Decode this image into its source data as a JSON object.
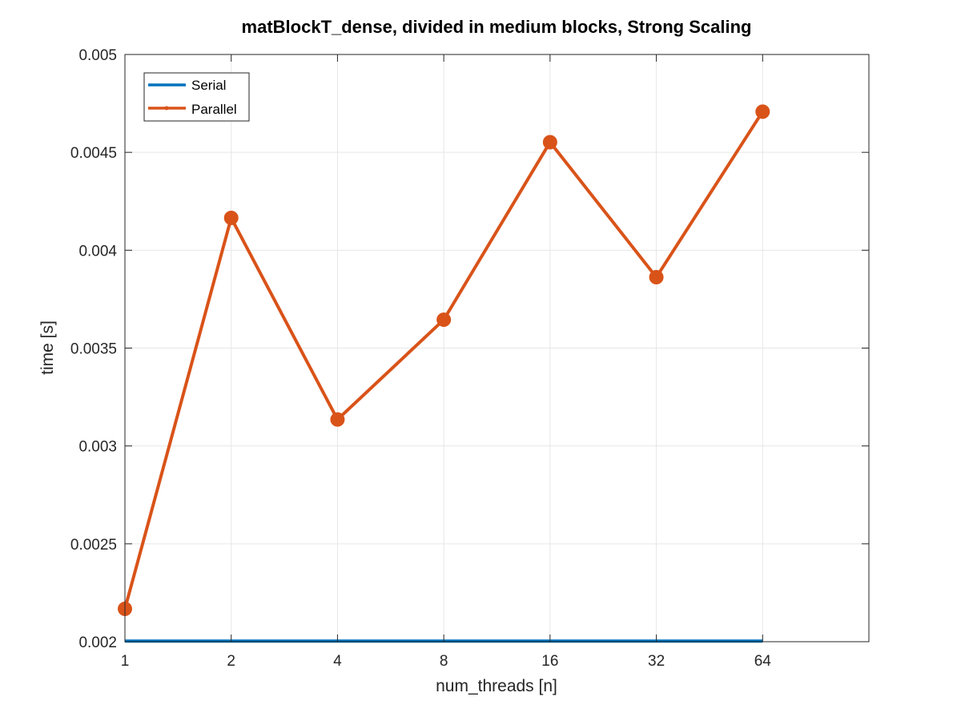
{
  "chart_data": {
    "type": "line",
    "title": "matBlockT_dense, divided in medium blocks, Strong Scaling",
    "xlabel": "num_threads [n]",
    "ylabel": "time [s]",
    "x_scale": "log2",
    "x_categories": [
      "1",
      "2",
      "4",
      "8",
      "16",
      "32",
      "64"
    ],
    "x": [
      1,
      2,
      4,
      8,
      16,
      32,
      64
    ],
    "xlim": [
      1,
      128
    ],
    "ylim": [
      0.002,
      0.005
    ],
    "yticks": [
      "0.002",
      "0.0025",
      "0.003",
      "0.0035",
      "0.004",
      "0.0045",
      "0.005"
    ],
    "grid": true,
    "legend_position": "top-left",
    "series": [
      {
        "name": "Serial",
        "color": "#0072BD",
        "marker": "none",
        "values": [
          0.002003,
          0.002003,
          0.002003,
          0.002003,
          0.002003,
          0.002003,
          0.002003
        ]
      },
      {
        "name": "Parallel",
        "color": "#D95319",
        "marker": "circle",
        "values": [
          0.002168,
          0.004165,
          0.003135,
          0.003645,
          0.004552,
          0.003862,
          0.004708
        ]
      }
    ]
  }
}
